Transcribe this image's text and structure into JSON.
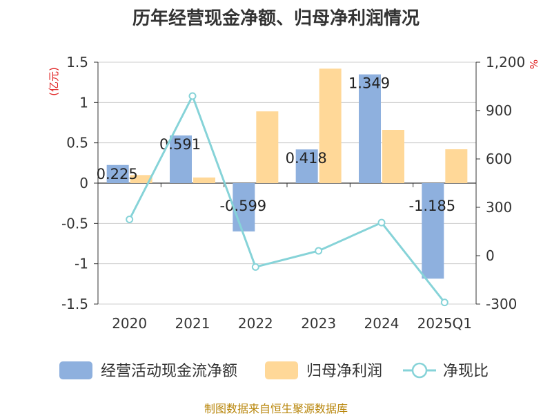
{
  "title": "历年经营现金净额、归母净利润情况",
  "source": "制图数据来自恒生聚源数据库",
  "colors": {
    "cash": "#8eb0de",
    "profit": "#ffd898",
    "ratio": "#86d3d8",
    "unit": "#e02020",
    "source": "#b8860b"
  },
  "chart_data": {
    "type": "bar",
    "categories": [
      "2020",
      "2021",
      "2022",
      "2023",
      "2024",
      "2025Q1"
    ],
    "y_left": {
      "unit": "(亿元)",
      "ylim": [
        -1.5,
        1.5
      ],
      "ticks": [
        1.5,
        1,
        0.5,
        0,
        -0.5,
        -1,
        -1.5
      ],
      "tick_labels": [
        "1.5",
        "1",
        "0.5",
        "0",
        "-0.5",
        "-1",
        "-1.5"
      ]
    },
    "y_right": {
      "unit": "%",
      "ylim": [
        -300,
        1200
      ],
      "ticks": [
        1200,
        900,
        600,
        300,
        0,
        -300
      ],
      "tick_labels": [
        "1,200",
        "900",
        "600",
        "300",
        "0",
        "-300"
      ]
    },
    "series": [
      {
        "name": "经营活动现金流净额",
        "type": "bar",
        "axis": "left",
        "values": [
          0.225,
          0.591,
          -0.599,
          0.418,
          1.349,
          -1.185
        ],
        "data_labels": [
          "0.225",
          "0.591",
          "-0.599",
          "0.418",
          "1.349",
          "-1.185"
        ]
      },
      {
        "name": "归母净利润",
        "type": "bar",
        "axis": "left",
        "values": [
          0.1,
          0.07,
          0.89,
          1.42,
          0.66,
          0.42
        ]
      },
      {
        "name": "净现比",
        "type": "line",
        "axis": "right",
        "values": [
          225,
          990,
          -70,
          30,
          205,
          -290
        ]
      }
    ],
    "grid": true,
    "legend_position": "bottom"
  }
}
